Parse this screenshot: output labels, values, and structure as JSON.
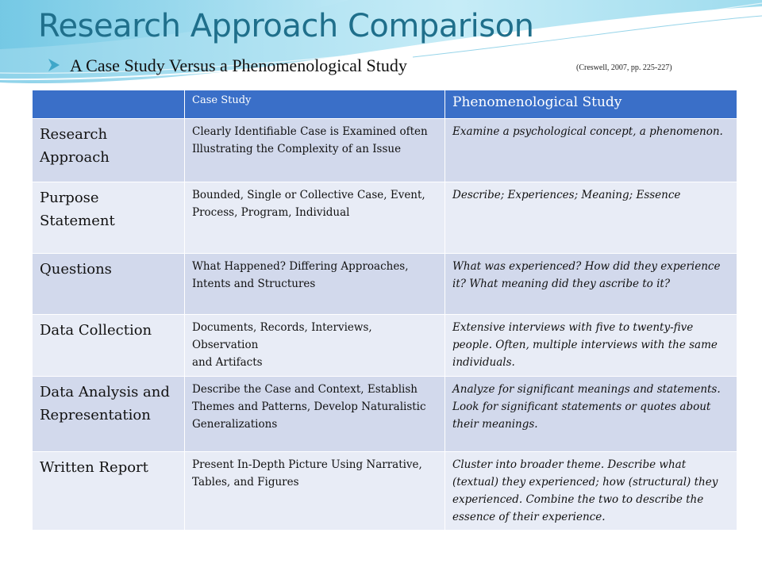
{
  "slide": {
    "title": "Research Approach Comparison",
    "subtitle": "A Case Study Versus a Phenomenological Study",
    "citation": "(Creswell, 2007, pp. 225-227)",
    "accent_color": "#3a6fc8",
    "title_color": "#1f6f8b"
  },
  "table": {
    "headers": [
      "",
      "Case Study",
      "Phenomenological Study"
    ],
    "rows": [
      {
        "label": "Research Approach",
        "case_study": "Clearly Identifiable Case is Examined often Illustrating the Complexity of an Issue",
        "phenomenological": "Examine a psychological concept, a phenomenon."
      },
      {
        "label": "Purpose Statement",
        "case_study": "Bounded, Single or Collective Case, Event, Process, Program, Individual",
        "phenomenological": "Describe; Experiences; Meaning; Essence"
      },
      {
        "label": "Questions",
        "case_study": "What Happened? Differing Approaches, Intents and Structures",
        "phenomenological": "What was experienced?  How did they experience it?  What meaning did they ascribe to it?"
      },
      {
        "label": "Data Collection",
        "case_study": "Documents, Records, Interviews, Observation\nand Artifacts",
        "phenomenological": "Extensive interviews with five to twenty-five people. Often, multiple interviews with the same individuals."
      },
      {
        "label": "Data Analysis and Representation",
        "case_study": "Describe the Case and Context, Establish Themes and Patterns, Develop Naturalistic Generalizations",
        "phenomenological": "Analyze for significant meanings and statements.  Look for significant statements or quotes about their meanings."
      },
      {
        "label": "Written Report",
        "case_study": "Present In-Depth Picture Using Narrative, Tables, and Figures",
        "phenomenological": "Cluster into broader theme. Describe what (textual) they experienced; how (structural) they experienced.  Combine the two to describe the essence of their experience."
      }
    ]
  }
}
